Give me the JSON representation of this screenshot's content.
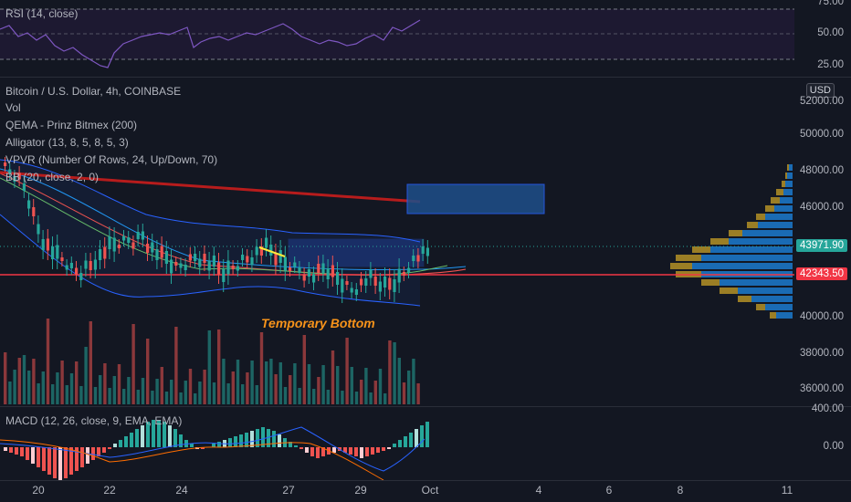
{
  "rsi": {
    "title": "RSI (14, close)",
    "axis": [
      "75.00",
      "50.00",
      "25.00"
    ]
  },
  "main": {
    "symbol": "Bitcoin / U.S. Dollar, 4h, COINBASE",
    "indicators": [
      "Vol",
      "QEMA - Prinz Bitmex (200)",
      "Alligator (13, 8, 5, 8, 5, 3)",
      "VPVR (Number Of Rows, 24, Up/Down, 70)",
      "BB (20, close, 2, 0)"
    ],
    "annotation": "Temporary Bottom",
    "currency": "USD",
    "axis": [
      "52000.00",
      "50000.00",
      "48000.00",
      "46000.00",
      "40000.00",
      "38000.00",
      "36000.00"
    ],
    "price_current": "43971.90",
    "price_level": "42343.50"
  },
  "macd": {
    "title": "MACD (12, 26, close, 9, EMA, EMA)",
    "axis": [
      "400.00",
      "0.00"
    ]
  },
  "x_axis": [
    "20",
    "22",
    "24",
    "27",
    "29",
    "Oct",
    "4",
    "6",
    "8",
    "11"
  ],
  "colors": {
    "background": "#131722",
    "up": "#26a69a",
    "down": "#ef5350",
    "level_line": "#f23645",
    "qema": "#b71c1c",
    "bb": "#2962ff",
    "annotation": "#f7931a"
  }
}
